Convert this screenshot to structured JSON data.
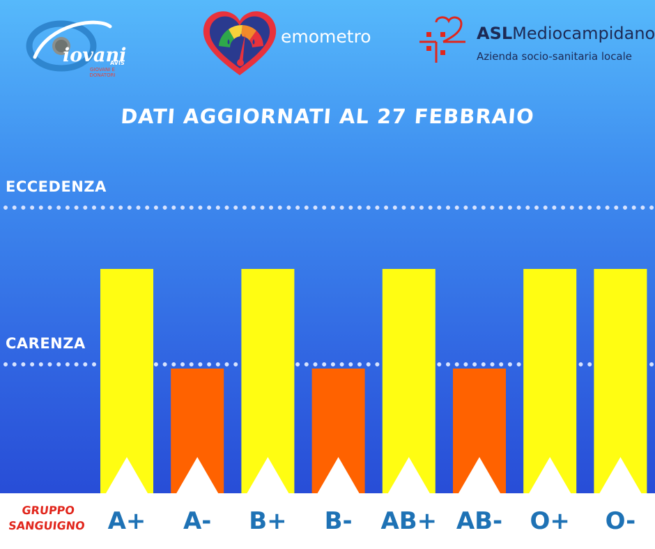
{
  "logos": {
    "giovani": {
      "text": "iovani",
      "avis": "AVIS",
      "subtitle": "GIOVANI E DONATORI",
      "colors": {
        "ring": "#2f86cf",
        "swoosh": "#ffffff"
      }
    },
    "emometro": {
      "text": "emometro",
      "colors": {
        "heart": "#e8323c",
        "gauge": [
          "#2ea84a",
          "#f7d23a",
          "#f18a2b",
          "#e8323c"
        ],
        "needle": "#e8323c"
      }
    },
    "asl": {
      "name_bold": "ASL",
      "name_rest": "Mediocampidano",
      "subtitle": "Azienda socio-sanitaria locale",
      "colors": {
        "mark": "#e1261c",
        "text": "#1d2a55"
      }
    }
  },
  "chart_data": {
    "type": "bar",
    "title": "DATI AGGIORNATI AL 27 FEBBRAIO",
    "xlabel": "GRUPPO SANGUIGNO",
    "categories": [
      "A+",
      "A-",
      "B+",
      "B-",
      "AB+",
      "AB-",
      "O+",
      "O-"
    ],
    "values": [
      2,
      1,
      2,
      1,
      2,
      1,
      2,
      2
    ],
    "levels": [
      {
        "name": "ECCEDENZA",
        "value": 3
      },
      {
        "name": "CARENZA",
        "value": 1
      }
    ],
    "ylim": [
      0,
      3
    ],
    "colors": {
      "above_carenza": "#fffd12",
      "carenza": "#ff6200",
      "level_line": "#d7e3ff",
      "tick_text": "#1e72b5",
      "axis_label": "#e1261c"
    }
  }
}
